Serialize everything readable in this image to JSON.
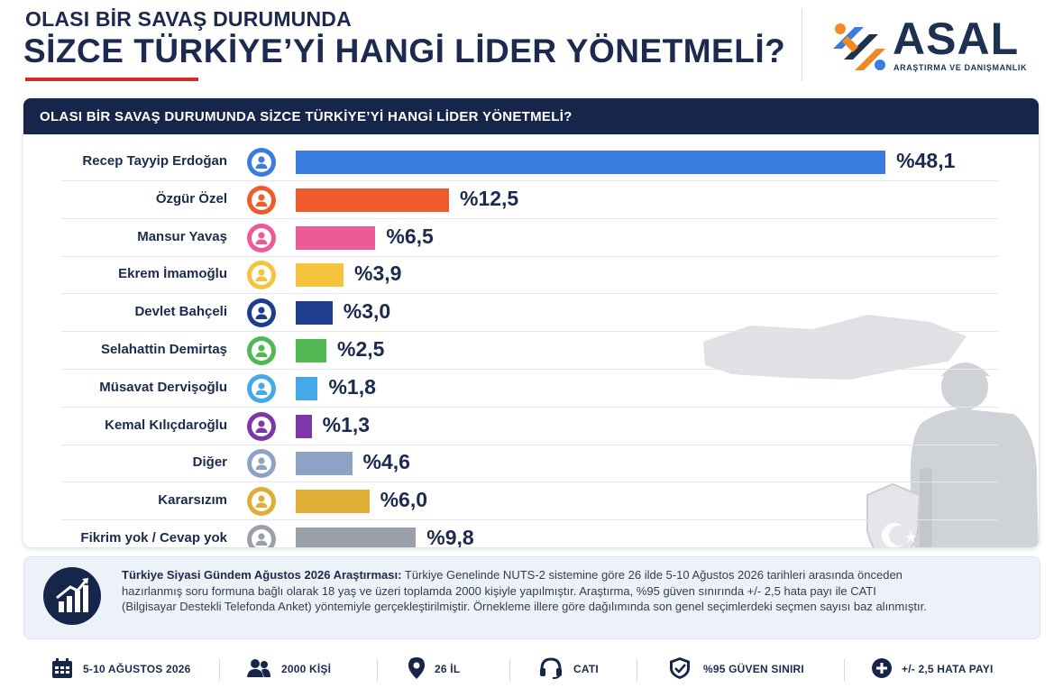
{
  "header": {
    "title_line1": "OLASI BİR SAVAŞ DURUMUNDA",
    "title_line2": "SİZCE TÜRKİYE’Yİ HANGİ LİDER YÖNETMELİ?"
  },
  "brand": {
    "name": "ASAL",
    "subtitle": "ARAŞTIRMA VE DANIŞMANLIK"
  },
  "chart_data": {
    "type": "bar",
    "orientation": "horizontal",
    "title": "OLASI BİR SAVAŞ DURUMUNDA SİZCE TÜRKİYE’Yİ HANGİ LİDER YÖNETMELİ?",
    "xlim": [
      0,
      50
    ],
    "categories": [
      "Recep Tayyip Erdoğan",
      "Özgür Özel",
      "Mansur Yavaş",
      "Ekrem İmamoğlu",
      "Devlet Bahçeli",
      "Selahattin Demirtaş",
      "Müsavat Dervişoğlu",
      "Kemal Kılıçdaroğlu",
      "Diğer",
      "Kararsızım",
      "Fikrim yok / Cevap yok"
    ],
    "values": [
      48.1,
      12.5,
      6.5,
      3.9,
      3.0,
      2.5,
      1.8,
      1.3,
      4.6,
      6.0,
      9.8
    ],
    "value_labels": [
      "%48,1",
      "%12,5",
      "%6,5",
      "%3,9",
      "%3,0",
      "%2,5",
      "%1,8",
      "%1,3",
      "%4,6",
      "%6,0",
      "%9,8"
    ],
    "colors": [
      "#3a7be0",
      "#ef5b2c",
      "#ec5a97",
      "#f5c33e",
      "#1f3d8f",
      "#52b852",
      "#45a8e8",
      "#7d37a8",
      "#8da3c6",
      "#e0ad36",
      "#9aa0aa"
    ]
  },
  "info": {
    "bold": "Türkiye Siyasi Gündem Ağustos 2026 Araştırması:",
    "text": " Türkiye Genelinde NUTS-2 sistemine göre 26 ilde 5-10 Ağustos 2026 tarihleri arasında önceden hazırlanmış soru formuna bağlı olarak 18 yaş ve üzeri toplamda 2000 kişiyle yapılmıştır. Araştırma, %95 güven sınırında +/- 2,5 hata payı ile CATI (Bilgisayar Destekli Telefonda Anket) yöntemiyle gerçekleştirilmiştir. Örnekleme illere göre dağılımında son genel seçimlerdeki seçmen sayısı baz alınmıştır."
  },
  "footer": [
    {
      "icon": "calendar-icon",
      "label": "5-10 AĞUSTOS 2026"
    },
    {
      "icon": "people-icon",
      "label": "2000 KİŞİ"
    },
    {
      "icon": "location-pin-icon",
      "label": "26 İL"
    },
    {
      "icon": "headset-icon",
      "label": "CATI"
    },
    {
      "icon": "shield-check-icon",
      "label": "%95 GÜVEN SINIRI"
    },
    {
      "icon": "plus-circle-icon",
      "label": "+/- 2,5 HATA PAYI"
    }
  ]
}
